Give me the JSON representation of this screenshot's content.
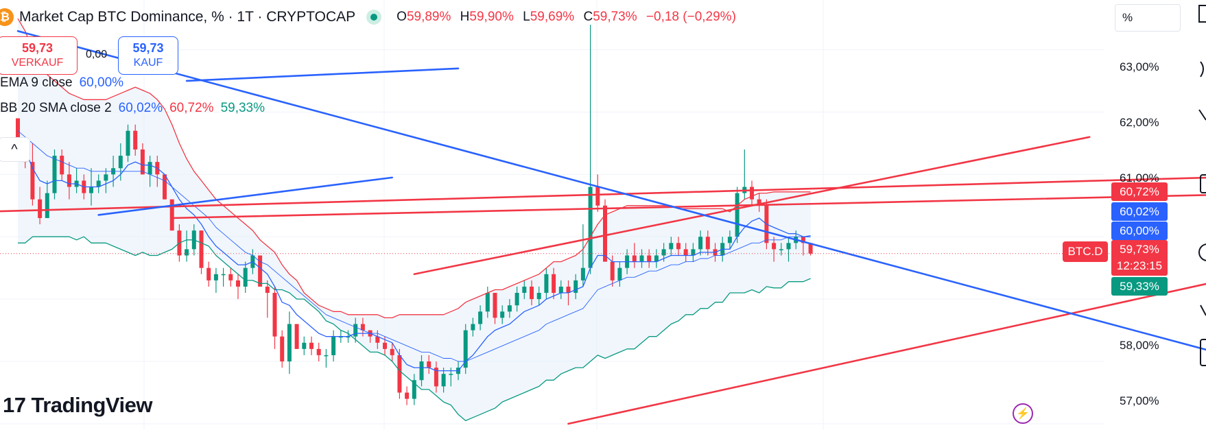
{
  "header": {
    "logo_glyph": "₿",
    "title": "Market Cap BTC Dominance, % · 1T · CRYPTOCAP",
    "ohlc": [
      {
        "key": "O",
        "value": "59,89%"
      },
      {
        "key": "H",
        "value": "59,90%"
      },
      {
        "key": "L",
        "value": "59,69%"
      },
      {
        "key": "C",
        "value": "59,73%"
      }
    ],
    "change": "−0,18 (−0,29%)"
  },
  "trade": {
    "sell_price": "59,73",
    "sell_label": "VERKAUF",
    "spread": "0,00",
    "buy_price": "59,73",
    "buy_label": "KAUF"
  },
  "indicators": {
    "ema_label": "EMA 9 close",
    "ema_value": "60,00%",
    "bb_label": "BB 20 SMA close 2",
    "bb_basis": "60,02%",
    "bb_upper": "60,72%",
    "bb_lower": "59,33%",
    "collapse_glyph": "^"
  },
  "price_axis": {
    "unit": "%",
    "labels": [
      "63,00%",
      "62,00%",
      "61,00%",
      "58,00%",
      "57,00%"
    ],
    "tag_upper": "60,72%",
    "tag_basis": "60,02%",
    "tag_ema": "60,00%",
    "tag_current": "59,73%",
    "countdown": "12:23:15",
    "tag_lower": "59,33%",
    "symbol_tag": "BTC.D"
  },
  "branding": {
    "logo_mark": "17",
    "logo_text": "TradingView"
  },
  "colors": {
    "up": "#089981",
    "down": "#f23645",
    "ema": "#2962ff",
    "bb_band": "#f23645",
    "bb_lower": "#089981",
    "fill": "#e3effa"
  },
  "chart_data": {
    "type": "candlestick",
    "symbol": "BTC.D",
    "ylim": [
      56.9,
      63.6
    ],
    "candles": [
      [
        61.9,
        61.9,
        61.3,
        61.5
      ],
      [
        61.5,
        61.6,
        61.1,
        61.2
      ],
      [
        61.2,
        61.5,
        60.5,
        60.6
      ],
      [
        60.6,
        60.8,
        60.2,
        60.3
      ],
      [
        60.3,
        60.9,
        60.3,
        60.7
      ],
      [
        60.7,
        61.4,
        60.6,
        61.3
      ],
      [
        61.3,
        61.4,
        60.9,
        61.0
      ],
      [
        61.0,
        61.2,
        60.6,
        60.8
      ],
      [
        60.8,
        61.1,
        60.7,
        60.9
      ],
      [
        60.9,
        61.0,
        60.6,
        60.7
      ],
      [
        60.7,
        61.1,
        60.5,
        60.8
      ],
      [
        60.8,
        61.0,
        60.7,
        60.9
      ],
      [
        60.9,
        61.1,
        60.7,
        61.0
      ],
      [
        61.0,
        61.3,
        60.8,
        61.1
      ],
      [
        61.1,
        61.5,
        60.9,
        61.3
      ],
      [
        61.3,
        61.8,
        61.2,
        61.7
      ],
      [
        61.7,
        61.8,
        61.3,
        61.4
      ],
      [
        61.4,
        61.5,
        61.0,
        61.0
      ],
      [
        61.0,
        61.3,
        60.8,
        61.2
      ],
      [
        61.2,
        61.3,
        60.8,
        61.0
      ],
      [
        61.0,
        61.0,
        60.6,
        60.6
      ],
      [
        60.6,
        60.6,
        60.1,
        60.1
      ],
      [
        60.1,
        60.2,
        59.6,
        59.7
      ],
      [
        59.7,
        60.1,
        59.6,
        59.8
      ],
      [
        59.8,
        60.2,
        59.7,
        60.1
      ],
      [
        60.1,
        60.1,
        59.4,
        59.5
      ],
      [
        59.5,
        59.6,
        59.2,
        59.3
      ],
      [
        59.3,
        59.5,
        59.1,
        59.4
      ],
      [
        59.4,
        59.5,
        59.2,
        59.4
      ],
      [
        59.4,
        59.5,
        59.2,
        59.3
      ],
      [
        59.3,
        59.4,
        59.0,
        59.2
      ],
      [
        59.2,
        59.6,
        59.1,
        59.5
      ],
      [
        59.5,
        59.8,
        59.4,
        59.7
      ],
      [
        59.7,
        59.7,
        59.2,
        59.2
      ],
      [
        59.2,
        59.3,
        58.7,
        59.1
      ],
      [
        59.1,
        59.2,
        58.2,
        58.4
      ],
      [
        58.4,
        58.5,
        57.9,
        58.0
      ],
      [
        58.0,
        58.8,
        57.8,
        58.6
      ],
      [
        58.6,
        58.6,
        58.2,
        58.2
      ],
      [
        58.2,
        58.4,
        58.1,
        58.3
      ],
      [
        58.3,
        58.4,
        58.1,
        58.2
      ],
      [
        58.2,
        58.3,
        58.0,
        58.1
      ],
      [
        58.1,
        58.2,
        57.9,
        58.1
      ],
      [
        58.1,
        58.5,
        58.0,
        58.4
      ],
      [
        58.4,
        58.5,
        58.3,
        58.4
      ],
      [
        58.4,
        58.5,
        58.3,
        58.4
      ],
      [
        58.4,
        58.7,
        58.3,
        58.6
      ],
      [
        58.6,
        58.7,
        58.4,
        58.5
      ],
      [
        58.5,
        58.5,
        58.3,
        58.4
      ],
      [
        58.4,
        58.5,
        58.2,
        58.3
      ],
      [
        58.3,
        58.4,
        58.1,
        58.2
      ],
      [
        58.2,
        58.3,
        58.0,
        58.1
      ],
      [
        58.1,
        58.2,
        57.4,
        57.5
      ],
      [
        57.5,
        57.6,
        57.3,
        57.4
      ],
      [
        57.4,
        57.8,
        57.3,
        57.7
      ],
      [
        57.7,
        58.1,
        57.6,
        58.0
      ],
      [
        58.0,
        58.1,
        57.8,
        57.9
      ],
      [
        57.9,
        58.0,
        57.5,
        57.6
      ],
      [
        57.6,
        57.9,
        57.5,
        57.8
      ],
      [
        57.8,
        57.9,
        57.6,
        57.8
      ],
      [
        57.8,
        58.0,
        57.7,
        57.9
      ],
      [
        57.9,
        58.6,
        57.8,
        58.5
      ],
      [
        58.5,
        58.7,
        58.4,
        58.6
      ],
      [
        58.6,
        58.9,
        58.5,
        58.8
      ],
      [
        58.8,
        59.2,
        58.7,
        59.1
      ],
      [
        59.1,
        59.1,
        58.6,
        58.7
      ],
      [
        58.7,
        58.9,
        58.6,
        58.8
      ],
      [
        58.8,
        59.0,
        58.7,
        58.9
      ],
      [
        58.9,
        59.2,
        58.8,
        59.1
      ],
      [
        59.1,
        59.3,
        59.0,
        59.2
      ],
      [
        59.2,
        59.3,
        58.9,
        59.0
      ],
      [
        59.0,
        59.2,
        58.9,
        59.1
      ],
      [
        59.1,
        59.5,
        59.0,
        59.4
      ],
      [
        59.4,
        59.5,
        59.0,
        59.1
      ],
      [
        59.1,
        59.3,
        59.0,
        59.2
      ],
      [
        59.2,
        59.3,
        58.9,
        59.1
      ],
      [
        59.1,
        59.4,
        59.0,
        59.3
      ],
      [
        59.3,
        60.2,
        59.2,
        59.5
      ],
      [
        59.5,
        63.4,
        59.4,
        60.8
      ],
      [
        60.8,
        61.0,
        60.4,
        60.5
      ],
      [
        60.5,
        60.6,
        59.6,
        59.6
      ],
      [
        59.6,
        59.7,
        59.2,
        59.3
      ],
      [
        59.3,
        59.6,
        59.2,
        59.5
      ],
      [
        59.5,
        59.8,
        59.4,
        59.7
      ],
      [
        59.7,
        59.9,
        59.5,
        59.6
      ],
      [
        59.6,
        59.8,
        59.5,
        59.7
      ],
      [
        59.7,
        59.8,
        59.5,
        59.6
      ],
      [
        59.6,
        59.8,
        59.5,
        59.7
      ],
      [
        59.7,
        59.9,
        59.6,
        59.8
      ],
      [
        59.8,
        60.0,
        59.7,
        59.9
      ],
      [
        59.9,
        60.0,
        59.7,
        59.8
      ],
      [
        59.8,
        59.9,
        59.6,
        59.7
      ],
      [
        59.7,
        59.9,
        59.6,
        59.8
      ],
      [
        59.8,
        60.1,
        59.7,
        60.0
      ],
      [
        60.0,
        60.1,
        59.7,
        59.8
      ],
      [
        59.8,
        59.9,
        59.6,
        59.7
      ],
      [
        59.7,
        60.0,
        59.6,
        59.9
      ],
      [
        59.9,
        60.1,
        59.8,
        60.0
      ],
      [
        60.0,
        60.8,
        59.9,
        60.7
      ],
      [
        60.7,
        61.4,
        60.6,
        60.8
      ],
      [
        60.8,
        60.9,
        60.5,
        60.6
      ],
      [
        60.6,
        60.7,
        60.4,
        60.5
      ],
      [
        60.5,
        60.6,
        59.8,
        59.9
      ],
      [
        59.9,
        60.0,
        59.6,
        59.8
      ],
      [
        59.8,
        59.9,
        59.7,
        59.8
      ],
      [
        59.8,
        60.0,
        59.6,
        59.9
      ],
      [
        59.9,
        60.1,
        59.8,
        60.0
      ],
      [
        60.0,
        60.0,
        59.7,
        59.9
      ],
      [
        59.9,
        59.9,
        59.7,
        59.73
      ]
    ],
    "ema9": [
      61.6,
      61.4,
      61.1,
      60.9,
      60.85,
      60.9,
      60.9,
      60.85,
      60.85,
      60.8,
      60.8,
      60.8,
      60.85,
      60.9,
      61.0,
      61.15,
      61.2,
      61.15,
      61.15,
      61.1,
      61.0,
      60.8,
      60.6,
      60.45,
      60.35,
      60.2,
      60.0,
      59.85,
      59.75,
      59.65,
      59.55,
      59.55,
      59.6,
      59.5,
      59.4,
      59.2,
      58.95,
      58.9,
      58.75,
      58.65,
      58.55,
      58.45,
      58.4,
      58.4,
      58.4,
      58.4,
      58.45,
      58.45,
      58.45,
      58.4,
      58.35,
      58.3,
      58.1,
      57.95,
      57.9,
      57.9,
      57.9,
      57.85,
      57.85,
      57.85,
      57.85,
      58.0,
      58.1,
      58.25,
      58.4,
      58.5,
      58.55,
      58.6,
      58.7,
      58.8,
      58.85,
      58.9,
      59.0,
      59.05,
      59.1,
      59.1,
      59.15,
      59.2,
      59.5,
      59.7,
      59.7,
      59.6,
      59.6,
      59.6,
      59.6,
      59.6,
      59.6,
      59.6,
      59.65,
      59.7,
      59.7,
      59.7,
      59.7,
      59.75,
      59.75,
      59.75,
      59.8,
      59.8,
      60.0,
      60.15,
      60.25,
      60.3,
      60.2,
      60.15,
      60.1,
      60.05,
      60.05,
      60.0,
      60.0
    ],
    "bb_basis": [
      61.7,
      61.6,
      61.5,
      61.4,
      61.3,
      61.25,
      61.2,
      61.15,
      61.1,
      61.1,
      61.05,
      61.05,
      61.05,
      61.05,
      61.05,
      61.05,
      61.05,
      61.05,
      61.0,
      60.95,
      60.9,
      60.8,
      60.7,
      60.6,
      60.5,
      60.4,
      60.3,
      60.15,
      60.05,
      59.95,
      59.85,
      59.75,
      59.7,
      59.6,
      59.55,
      59.45,
      59.35,
      59.25,
      59.15,
      59.05,
      58.95,
      58.85,
      58.75,
      58.7,
      58.65,
      58.6,
      58.55,
      58.5,
      58.45,
      58.45,
      58.4,
      58.35,
      58.3,
      58.25,
      58.2,
      58.15,
      58.15,
      58.1,
      58.05,
      58.05,
      58.0,
      58.0,
      58.05,
      58.1,
      58.15,
      58.2,
      58.25,
      58.3,
      58.35,
      58.4,
      58.45,
      58.5,
      58.6,
      58.65,
      58.7,
      58.75,
      58.8,
      58.85,
      59.0,
      59.15,
      59.2,
      59.25,
      59.3,
      59.35,
      59.35,
      59.4,
      59.45,
      59.45,
      59.5,
      59.55,
      59.55,
      59.6,
      59.6,
      59.65,
      59.65,
      59.7,
      59.7,
      59.75,
      59.8,
      59.85,
      59.9,
      59.9,
      59.95,
      59.95,
      59.95,
      60.0,
      60.0,
      60.0,
      60.02
    ],
    "bb_upper": [
      63.5,
      63.3,
      63.0,
      62.8,
      62.6,
      62.5,
      62.4,
      62.3,
      62.25,
      62.2,
      62.2,
      62.2,
      62.2,
      62.25,
      62.3,
      62.35,
      62.4,
      62.35,
      62.3,
      62.2,
      62.05,
      61.8,
      61.5,
      61.25,
      61.05,
      60.9,
      60.75,
      60.6,
      60.5,
      60.4,
      60.3,
      60.2,
      60.1,
      59.95,
      59.85,
      59.75,
      59.55,
      59.4,
      59.3,
      59.1,
      59.0,
      58.9,
      58.85,
      58.8,
      58.8,
      58.75,
      58.75,
      58.75,
      58.75,
      58.75,
      58.7,
      58.7,
      58.75,
      58.75,
      58.75,
      58.75,
      58.75,
      58.75,
      58.75,
      58.8,
      58.85,
      58.95,
      59.0,
      59.05,
      59.1,
      59.15,
      59.15,
      59.2,
      59.25,
      59.3,
      59.35,
      59.4,
      59.5,
      59.6,
      59.6,
      59.65,
      59.7,
      59.8,
      60.0,
      60.2,
      60.35,
      60.4,
      60.45,
      60.5,
      60.5,
      60.5,
      60.5,
      60.5,
      60.5,
      60.5,
      60.45,
      60.45,
      60.45,
      60.45,
      60.45,
      60.45,
      60.45,
      60.4,
      60.5,
      60.6,
      60.65,
      60.7,
      60.7,
      60.72,
      60.72,
      60.72,
      60.72,
      60.72,
      60.72
    ],
    "bb_lower": [
      59.9,
      59.9,
      60.0,
      60.0,
      60.0,
      60.0,
      60.0,
      60.0,
      59.95,
      60.0,
      59.9,
      59.9,
      59.9,
      59.85,
      59.8,
      59.75,
      59.7,
      59.75,
      59.7,
      59.7,
      59.75,
      59.8,
      59.9,
      59.95,
      59.95,
      59.9,
      59.85,
      59.7,
      59.6,
      59.5,
      59.4,
      59.3,
      59.3,
      59.25,
      59.25,
      59.15,
      59.15,
      59.1,
      59.0,
      59.0,
      58.9,
      58.8,
      58.65,
      58.6,
      58.5,
      58.45,
      58.35,
      58.25,
      58.15,
      58.15,
      58.1,
      58.0,
      57.85,
      57.75,
      57.65,
      57.55,
      57.55,
      57.45,
      57.35,
      57.3,
      57.15,
      57.05,
      57.1,
      57.15,
      57.2,
      57.25,
      57.35,
      57.4,
      57.45,
      57.5,
      57.55,
      57.6,
      57.7,
      57.7,
      57.8,
      57.85,
      57.9,
      57.9,
      58.0,
      58.1,
      58.05,
      58.1,
      58.15,
      58.2,
      58.2,
      58.3,
      58.4,
      58.4,
      58.5,
      58.6,
      58.65,
      58.75,
      58.75,
      58.85,
      58.85,
      58.95,
      58.95,
      59.1,
      59.1,
      59.1,
      59.15,
      59.1,
      59.2,
      59.18,
      59.18,
      59.28,
      59.28,
      59.28,
      59.33
    ],
    "trendlines": [
      {
        "color": "red",
        "from": [
          -5,
          60.4
        ],
        "to": [
          193,
          61.05
        ]
      },
      {
        "color": "red",
        "from": [
          21,
          60.3
        ],
        "to": [
          193,
          60.75
        ]
      },
      {
        "color": "red",
        "from": [
          54,
          59.4
        ],
        "to": [
          146,
          61.6
        ]
      },
      {
        "color": "red",
        "from": [
          75,
          57.0
        ],
        "to": [
          190,
          59.97
        ]
      },
      {
        "color": "blue",
        "from": [
          11,
          60.35
        ],
        "to": [
          51,
          60.95
        ]
      },
      {
        "color": "blue",
        "from": [
          23,
          62.5
        ],
        "to": [
          60,
          62.7
        ]
      },
      {
        "color": "blue",
        "from": [
          0,
          63.3
        ],
        "to": [
          190,
          57.3
        ]
      }
    ]
  }
}
